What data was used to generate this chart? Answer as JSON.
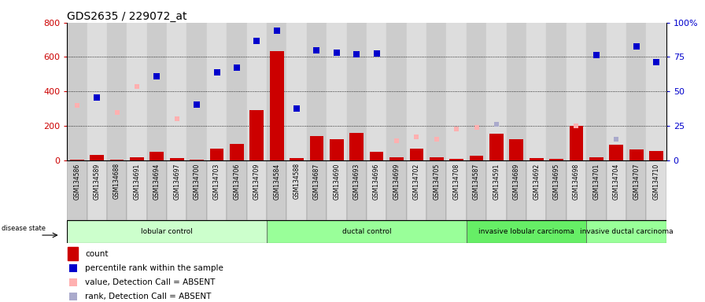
{
  "title": "GDS2635 / 229072_at",
  "samples": [
    "GSM134586",
    "GSM134589",
    "GSM134688",
    "GSM134691",
    "GSM134694",
    "GSM134697",
    "GSM134700",
    "GSM134703",
    "GSM134706",
    "GSM134709",
    "GSM134584",
    "GSM134588",
    "GSM134687",
    "GSM134690",
    "GSM134693",
    "GSM134696",
    "GSM134699",
    "GSM134702",
    "GSM134705",
    "GSM134708",
    "GSM134587",
    "GSM134591",
    "GSM134689",
    "GSM134692",
    "GSM134695",
    "GSM134698",
    "GSM134701",
    "GSM134704",
    "GSM134707",
    "GSM134710"
  ],
  "count_values": [
    2,
    30,
    2,
    15,
    48,
    12,
    2,
    65,
    92,
    290,
    635,
    10,
    140,
    120,
    160,
    48,
    15,
    65,
    15,
    8,
    25,
    155,
    120,
    10,
    8,
    200,
    15,
    88,
    60,
    55
  ],
  "percentile_values": [
    null,
    362,
    null,
    null,
    490,
    null,
    325,
    510,
    540,
    695,
    755,
    300,
    640,
    625,
    615,
    620,
    null,
    null,
    null,
    null,
    null,
    null,
    null,
    null,
    null,
    null,
    610,
    null,
    660,
    570
  ],
  "absent_count": [
    320,
    null,
    275,
    430,
    null,
    240,
    null,
    null,
    null,
    null,
    null,
    300,
    null,
    null,
    null,
    null,
    110,
    135,
    120,
    180,
    190,
    null,
    null,
    null,
    null,
    200,
    null,
    null,
    null,
    null
  ],
  "absent_rank": [
    null,
    null,
    null,
    null,
    null,
    null,
    null,
    null,
    null,
    null,
    null,
    null,
    null,
    null,
    null,
    null,
    null,
    null,
    null,
    null,
    null,
    210,
    null,
    null,
    null,
    null,
    null,
    120,
    null,
    null
  ],
  "groups": [
    {
      "label": "lobular control",
      "start": 0,
      "end": 10,
      "color": "#ccffcc"
    },
    {
      "label": "ductal control",
      "start": 10,
      "end": 20,
      "color": "#99ff99"
    },
    {
      "label": "invasive lobular carcinoma",
      "start": 20,
      "end": 26,
      "color": "#66ee66"
    },
    {
      "label": "invasive ductal carcinoma",
      "start": 26,
      "end": 30,
      "color": "#99ff99"
    }
  ],
  "ylim_left": 800,
  "left_yticks": [
    0,
    200,
    400,
    600,
    800
  ],
  "right_yticks": [
    0,
    25,
    50,
    75,
    100
  ],
  "bar_color": "#cc0000",
  "dot_color": "#0000cc",
  "absent_count_color": "#ffb0b0",
  "absent_rank_color": "#aaaacc",
  "left_tick_color": "#cc0000",
  "right_tick_color": "#0000cc",
  "col_colors": [
    "#cccccc",
    "#dddddd"
  ]
}
